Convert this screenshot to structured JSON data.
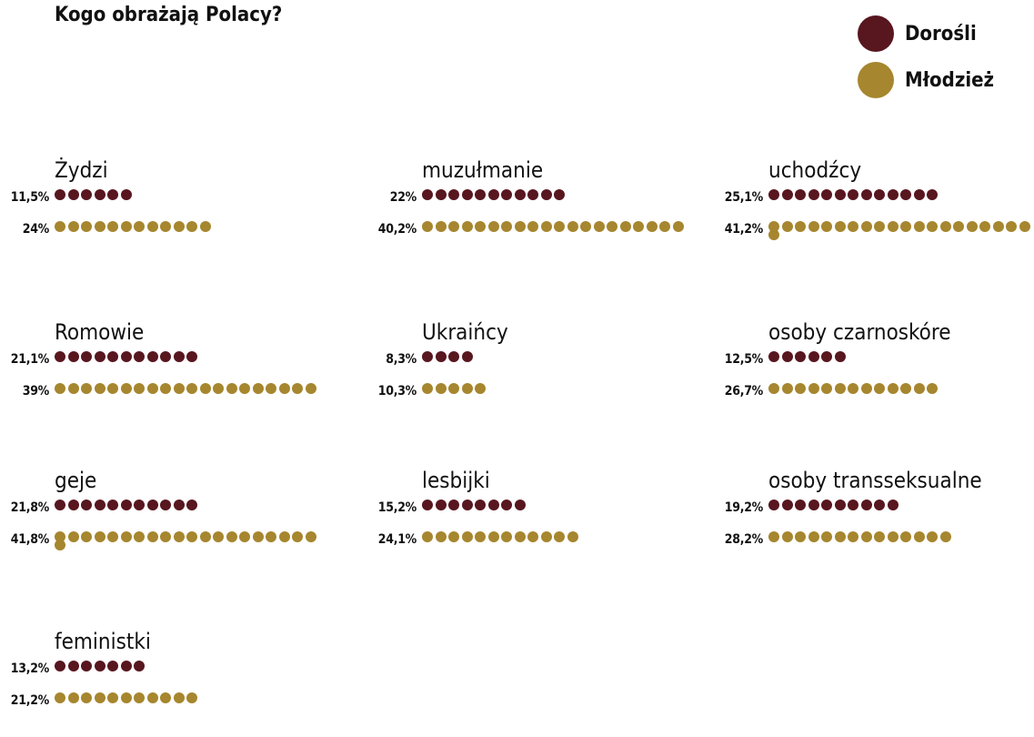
{
  "title": "Kogo obrażają Polacy?",
  "legend": [
    {
      "label": "Dorośli",
      "color": "#58161f"
    },
    {
      "label": "Młodzież",
      "color": "#a6862e"
    }
  ],
  "chart_data": {
    "type": "dot_matrix",
    "unit": "%",
    "series": [
      {
        "name": "Dorośli",
        "color": "#58161f"
      },
      {
        "name": "Młodzież",
        "color": "#a6862e"
      }
    ],
    "groups": [
      {
        "label": "Żydzi",
        "adults": {
          "value": 11.5,
          "text": "11,5%"
        },
        "youth": {
          "value": 24,
          "text": "24%"
        }
      },
      {
        "label": "muzułmanie",
        "adults": {
          "value": 22,
          "text": "22%"
        },
        "youth": {
          "value": 40.2,
          "text": "40,2%"
        }
      },
      {
        "label": "uchodźcy",
        "adults": {
          "value": 25.1,
          "text": "25,1%"
        },
        "youth": {
          "value": 41.2,
          "text": "41,2%"
        }
      },
      {
        "label": "Romowie",
        "adults": {
          "value": 21.1,
          "text": "21,1%"
        },
        "youth": {
          "value": 39,
          "text": "39%"
        }
      },
      {
        "label": "Ukraińcy",
        "adults": {
          "value": 8.3,
          "text": "8,3%"
        },
        "youth": {
          "value": 10.3,
          "text": "10,3%"
        }
      },
      {
        "label": "osoby czarnoskóre",
        "adults": {
          "value": 12.5,
          "text": "12,5%"
        },
        "youth": {
          "value": 26.7,
          "text": "26,7%"
        }
      },
      {
        "label": "geje",
        "adults": {
          "value": 21.8,
          "text": "21,8%"
        },
        "youth": {
          "value": 41.8,
          "text": "41,8%"
        }
      },
      {
        "label": "lesbijki",
        "adults": {
          "value": 15.2,
          "text": "15,2%"
        },
        "youth": {
          "value": 24.1,
          "text": "24,1%"
        }
      },
      {
        "label": "osoby transseksualne",
        "adults": {
          "value": 19.2,
          "text": "19,2%"
        },
        "youth": {
          "value": 28.2,
          "text": "28,2%"
        }
      },
      {
        "label": "feministki",
        "adults": {
          "value": 13.2,
          "text": "13,2%"
        },
        "youth": {
          "value": 21.2,
          "text": "21,2%"
        }
      }
    ]
  }
}
